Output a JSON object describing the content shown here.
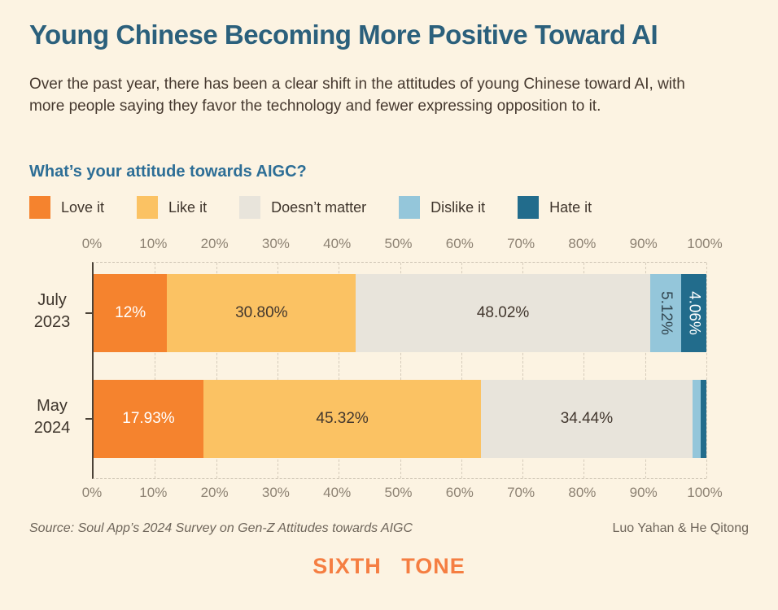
{
  "page": {
    "background_color": "#FCF3E2",
    "accent_colors": {
      "title_teal": "#2B607C",
      "question_blue": "#2D6E96",
      "logo_orange": "#F57E42"
    }
  },
  "header": {
    "title": "Young Chinese Becoming More Positive Toward AI",
    "subtitle": "Over the past year, there has been a clear shift in the attitudes of young Chinese toward AI, with more people saying they favor the technology and fewer expressing opposition to it."
  },
  "chart": {
    "question": "What’s your attitude towards AIGC?"
  },
  "chart_data": {
    "type": "bar",
    "variant": "stacked-horizontal",
    "title": "What’s your attitude towards AIGC?",
    "xlabel": "",
    "ylabel": "",
    "xlim": [
      0,
      100
    ],
    "grid": "vertical-dashed",
    "legend_position": "top",
    "x_ticks": [
      "0%",
      "10%",
      "20%",
      "30%",
      "40%",
      "50%",
      "60%",
      "70%",
      "80%",
      "90%",
      "100%"
    ],
    "categories": [
      "July 2023",
      "May 2024"
    ],
    "category_display": [
      "July\n2023",
      "May\n2024"
    ],
    "series": [
      {
        "name": "Love it",
        "color": "#F5832E",
        "label_color": "#FFFFFF",
        "values": [
          12,
          17.93
        ],
        "seg_labels": [
          "12%",
          "17.93%"
        ]
      },
      {
        "name": "Like it",
        "color": "#FBC263",
        "label_color": "#42372E",
        "values": [
          30.8,
          45.32
        ],
        "seg_labels": [
          "30.80%",
          "45.32%"
        ]
      },
      {
        "name": "Doesn’t matter",
        "color": "#E8E4DB",
        "label_color": "#42372E",
        "values": [
          48.02,
          34.44
        ],
        "seg_labels": [
          "48.02%",
          "34.44%"
        ]
      },
      {
        "name": "Dislike it",
        "color": "#94C6DA",
        "label_color": "#344852",
        "values": [
          5.12,
          1.4
        ],
        "seg_labels": [
          "5.12%",
          ""
        ]
      },
      {
        "name": "Hate it",
        "color": "#226C8C",
        "label_color": "#FFFFFF",
        "values": [
          4.06,
          0.91
        ],
        "seg_labels": [
          "4.06%",
          ""
        ]
      }
    ]
  },
  "footer": {
    "source": "Source: Soul App’s 2024 Survey on Gen-Z Attitudes towards AIGC",
    "credit": "Luo Yahan & He Qitong",
    "logo": "SIXTH TONE"
  }
}
